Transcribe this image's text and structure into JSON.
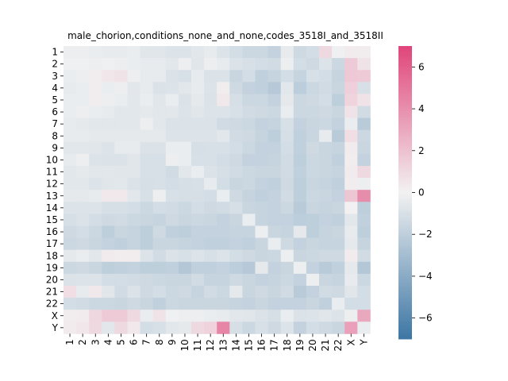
{
  "chart_data": {
    "type": "heatmap",
    "title": "male_chorion,conditions_none_and_none,codes_3518I_and_3518II",
    "xlabel": "",
    "ylabel": "",
    "labels": [
      "1",
      "2",
      "3",
      "4",
      "5",
      "6",
      "7",
      "8",
      "9",
      "10",
      "11",
      "12",
      "13",
      "14",
      "15",
      "16",
      "17",
      "18",
      "19",
      "20",
      "21",
      "22",
      "X",
      "Y"
    ],
    "colorbar": {
      "vmin": -7,
      "vmax": 7,
      "ticks": [
        -6,
        -4,
        -2,
        0,
        2,
        4,
        6
      ],
      "colors": {
        "low": "#3d76a4",
        "mid": "#f2f2f2",
        "high": "#e0457a"
      }
    },
    "matrix": [
      [
        -0.2,
        -0.2,
        -0.3,
        -0.4,
        -0.4,
        -0.3,
        -0.7,
        -0.7,
        -0.8,
        -0.8,
        -0.6,
        -0.4,
        -0.8,
        -1.2,
        -1.5,
        -1.5,
        -1.8,
        -0.4,
        -1.4,
        -1.2,
        1.0,
        -0.1,
        0.3,
        0.2
      ],
      [
        -0.1,
        -0.1,
        -0.2,
        -0.1,
        -0.2,
        -0.3,
        -0.4,
        -0.4,
        -0.6,
        -0.2,
        -0.7,
        -0.2,
        -0.4,
        -0.9,
        -1.0,
        -1.2,
        -1.3,
        -0.2,
        -1.2,
        -1.4,
        -0.8,
        -1.5,
        1.6,
        0.6
      ],
      [
        -0.3,
        -0.2,
        0.2,
        0.5,
        0.6,
        -0.2,
        -0.4,
        -0.4,
        -0.9,
        -1.0,
        -0.4,
        -0.9,
        -0.9,
        -1.6,
        -1.2,
        -1.9,
        -1.7,
        -1.2,
        -1.7,
        -1.0,
        -1.2,
        -1.7,
        1.7,
        1.6
      ],
      [
        -0.4,
        -0.3,
        0.2,
        -0.3,
        -0.2,
        -0.6,
        -0.4,
        -0.9,
        -0.8,
        -0.6,
        -0.4,
        -0.8,
        0.2,
        -1.4,
        -1.8,
        -1.9,
        -2.3,
        -0.6,
        -2.1,
        -1.5,
        -1.3,
        -1.6,
        1.4,
        -1.0
      ],
      [
        -0.3,
        -0.3,
        0.2,
        -0.2,
        -0.3,
        -0.6,
        -0.3,
        -0.7,
        -0.3,
        -0.9,
        -0.5,
        -0.9,
        0.4,
        -1.1,
        -1.5,
        -1.5,
        -1.8,
        -0.5,
        -1.5,
        -1.4,
        -1.2,
        -2.0,
        1.2,
        0.6
      ],
      [
        -0.3,
        -0.2,
        -0.3,
        -0.4,
        -0.6,
        -0.6,
        -0.5,
        -0.6,
        -0.6,
        -0.8,
        -0.7,
        -0.8,
        -0.8,
        -1.0,
        -1.3,
        -1.4,
        -1.5,
        -0.3,
        -1.5,
        -1.5,
        -1.4,
        -1.6,
        0.6,
        -1.3
      ],
      [
        -0.4,
        -0.5,
        -0.6,
        -0.6,
        -0.6,
        -0.6,
        -0.2,
        -0.6,
        -0.9,
        -0.9,
        -0.9,
        -0.9,
        -1.3,
        -1.4,
        -1.5,
        -1.8,
        -1.7,
        -1.0,
        -1.8,
        -1.6,
        -1.5,
        -1.8,
        -0.3,
        -2.2
      ],
      [
        -0.4,
        -0.4,
        -0.5,
        -0.5,
        -0.5,
        -0.5,
        -0.5,
        -0.5,
        -0.8,
        -0.8,
        -0.8,
        -0.8,
        -0.6,
        -1.3,
        -1.4,
        -1.7,
        -2.0,
        -1.1,
        -1.9,
        -1.6,
        -0.4,
        -2.2,
        0.8,
        -1.5
      ],
      [
        -0.6,
        -0.6,
        -0.7,
        -0.8,
        -0.4,
        -0.4,
        -0.9,
        -0.9,
        -0.3,
        -0.3,
        -1.1,
        -1.0,
        -1.0,
        -1.2,
        -1.5,
        -1.8,
        -1.8,
        -1.2,
        -1.9,
        -1.4,
        -1.6,
        -1.7,
        0.3,
        -1.6
      ],
      [
        -0.4,
        -0.2,
        -0.8,
        -0.9,
        -0.9,
        -0.7,
        -1.0,
        -1.0,
        -0.2,
        -0.3,
        -1.0,
        -1.0,
        -1.2,
        -1.4,
        -1.8,
        -1.8,
        -1.7,
        -1.3,
        -2.0,
        -1.5,
        -1.6,
        -1.9,
        0.2,
        -1.8
      ],
      [
        -0.6,
        -0.5,
        -0.6,
        -0.6,
        -0.7,
        -0.7,
        -1.0,
        -1.0,
        -1.3,
        -0.6,
        -0.3,
        -0.9,
        -1.1,
        -1.3,
        -1.5,
        -1.6,
        -1.6,
        -1.3,
        -1.9,
        -1.5,
        -1.6,
        -1.7,
        0.3,
        1.0
      ],
      [
        -0.6,
        -0.6,
        -0.8,
        -0.7,
        -0.6,
        -0.9,
        -1.1,
        -1.0,
        -1.2,
        -1.1,
        -1.0,
        -0.4,
        -1.2,
        -1.6,
        -1.5,
        -1.8,
        -1.9,
        -1.4,
        -2.0,
        -1.6,
        -1.7,
        -1.9,
        0.2,
        -0.2
      ],
      [
        -0.5,
        -0.5,
        -0.4,
        0.4,
        0.4,
        -0.6,
        -1.0,
        -0.2,
        -1.0,
        -1.1,
        -1.1,
        -1.2,
        -0.3,
        -1.4,
        -1.7,
        -1.9,
        -1.8,
        -1.3,
        -2.0,
        -1.5,
        -1.6,
        -1.8,
        1.8,
        4.1
      ],
      [
        -0.8,
        -0.8,
        -0.8,
        -1.1,
        -1.1,
        -1.2,
        -1.5,
        -1.2,
        -1.3,
        -1.5,
        -1.2,
        -1.4,
        -1.3,
        -1.1,
        -1.6,
        -1.7,
        -1.8,
        -1.5,
        -2.2,
        -1.6,
        -1.7,
        -1.6,
        0.1,
        -2.0
      ],
      [
        -1.1,
        -0.9,
        -1.2,
        -1.4,
        -1.3,
        -1.5,
        -1.6,
        -1.7,
        -1.4,
        -1.6,
        -1.5,
        -1.6,
        -1.8,
        -1.6,
        -0.3,
        -1.7,
        -1.8,
        -1.8,
        -2.1,
        -2.0,
        -1.8,
        -1.9,
        -0.6,
        -1.9
      ],
      [
        -1.4,
        -1.2,
        -1.5,
        -2.0,
        -1.6,
        -1.7,
        -2.0,
        -1.4,
        -1.9,
        -2.0,
        -1.8,
        -1.8,
        -1.8,
        -1.7,
        -1.7,
        -0.2,
        -1.6,
        -1.7,
        -0.5,
        -2.0,
        -1.7,
        -1.6,
        -0.4,
        -2.0
      ],
      [
        -1.5,
        -1.4,
        -1.6,
        -1.8,
        -1.9,
        -1.7,
        -2.0,
        -1.6,
        -1.6,
        -1.7,
        -1.8,
        -1.9,
        -1.9,
        -1.8,
        -1.9,
        -1.6,
        -0.3,
        -1.4,
        -1.8,
        -1.6,
        -1.7,
        -1.7,
        -0.5,
        -1.7
      ],
      [
        -0.5,
        -0.3,
        -0.6,
        0.3,
        0.2,
        0.2,
        -0.8,
        -1.3,
        -0.9,
        -1.0,
        -0.8,
        -1.0,
        -0.8,
        -1.2,
        -1.4,
        -1.6,
        -1.5,
        -0.2,
        -1.6,
        -1.5,
        -1.4,
        -1.4,
        0.3,
        -1.3
      ],
      [
        -1.5,
        -1.4,
        -1.6,
        -2.0,
        -1.9,
        -1.8,
        -2.0,
        -2.0,
        -1.9,
        -2.4,
        -1.9,
        -1.9,
        -1.8,
        -2.1,
        -2.3,
        -0.5,
        -1.8,
        -1.6,
        -0.2,
        -1.8,
        -2.2,
        -1.9,
        -0.5,
        -2.4
      ],
      [
        -0.9,
        -0.8,
        -0.8,
        -1.2,
        -1.2,
        -1.3,
        -1.4,
        -1.5,
        -1.6,
        -1.6,
        -1.3,
        -1.7,
        -1.7,
        -1.4,
        -1.6,
        -1.8,
        -1.7,
        -1.5,
        -1.8,
        -0.2,
        -1.6,
        -1.7,
        -0.4,
        -1.5
      ],
      [
        0.8,
        -0.4,
        0.4,
        -0.7,
        -1.3,
        -0.9,
        -1.4,
        -1.2,
        -1.5,
        -1.4,
        -1.7,
        -1.3,
        -1.5,
        -0.5,
        -1.6,
        -1.4,
        -1.6,
        -1.3,
        -2.2,
        -1.8,
        -1.3,
        -1.4,
        -0.7,
        -1.2
      ],
      [
        -1.2,
        -1.3,
        -1.5,
        -1.5,
        -1.6,
        -1.4,
        -1.6,
        -1.9,
        -1.5,
        -1.6,
        -1.6,
        -1.6,
        -1.6,
        -1.7,
        -1.8,
        -1.6,
        -1.8,
        -1.8,
        -1.8,
        -1.6,
        -1.9,
        -0.3,
        -1.2,
        -1.2
      ],
      [
        0.2,
        0.3,
        1.1,
        1.6,
        1.6,
        1.0,
        -0.3,
        0.6,
        -0.1,
        -0.2,
        -0.2,
        -0.3,
        -0.4,
        -0.6,
        -0.7,
        -0.9,
        -1.1,
        -0.3,
        -0.9,
        -0.8,
        -0.7,
        -0.8,
        -0.2,
        3.0
      ],
      [
        0.3,
        0.5,
        1.0,
        -0.6,
        1.0,
        0.4,
        -1.2,
        -1.0,
        -0.6,
        -0.5,
        1.0,
        1.3,
        4.4,
        -1.1,
        -1.5,
        -1.0,
        -1.4,
        -0.8,
        -1.8,
        -1.2,
        -1.4,
        -1.6,
        3.3,
        -0.3
      ]
    ]
  }
}
